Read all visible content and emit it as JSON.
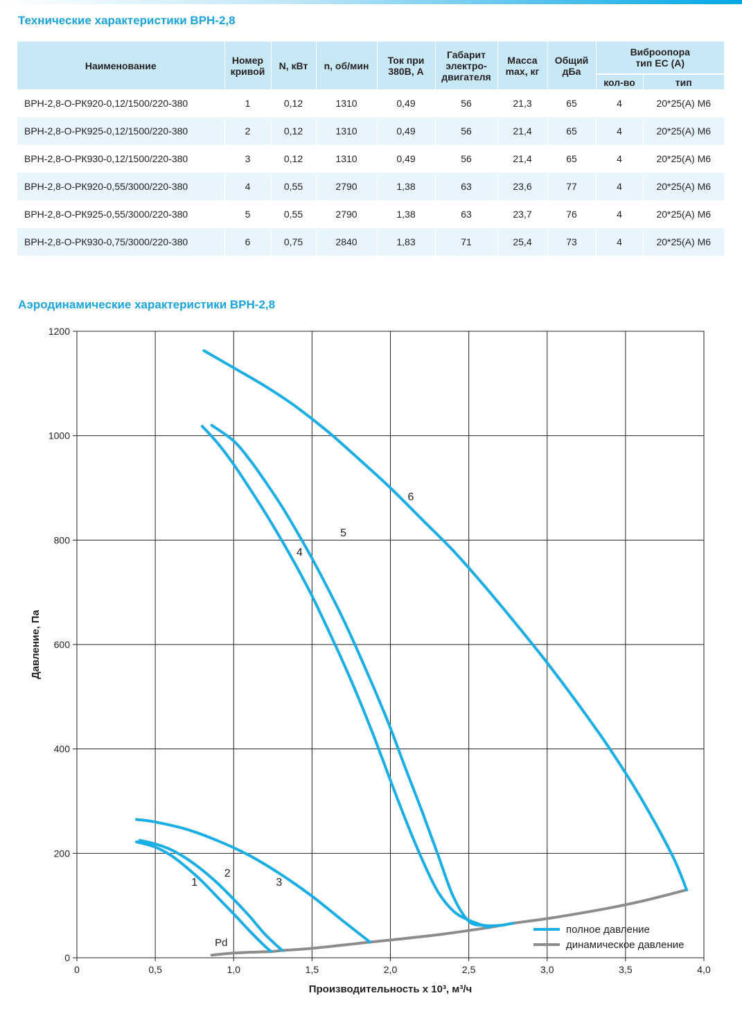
{
  "title_tech": "Технические характеристики ВРН-2,8",
  "title_aero": "Аэродинамические характеристики ВРН-2,8",
  "table": {
    "headers": {
      "name": "Наименование",
      "curve_no": [
        "Номер",
        "кривой"
      ],
      "power": "N, кВт",
      "rpm": "n, об/мин",
      "current": [
        "Ток при",
        "380В, А"
      ],
      "frame": [
        "Габарит",
        "электро-",
        "двигателя"
      ],
      "mass": [
        "Масса",
        "max, кг"
      ],
      "noise": [
        "Общий",
        "дБа"
      ],
      "vibro": [
        "Виброопора",
        "тип ЕС (А)"
      ],
      "vibro_qty": "кол-во",
      "vibro_type": "тип"
    },
    "rows": [
      {
        "name": "ВРН-2,8-О-РК920-0,12/1500/220-380",
        "curve": "1",
        "power": "0,12",
        "rpm": "1310",
        "current": "0,49",
        "frame": "56",
        "mass": "21,3",
        "noise": "65",
        "qty": "4",
        "type": "20*25(А) М6"
      },
      {
        "name": "ВРН-2,8-О-РК925-0,12/1500/220-380",
        "curve": "2",
        "power": "0,12",
        "rpm": "1310",
        "current": "0,49",
        "frame": "56",
        "mass": "21,4",
        "noise": "65",
        "qty": "4",
        "type": "20*25(А) М6"
      },
      {
        "name": "ВРН-2,8-О-РК930-0,12/1500/220-380",
        "curve": "3",
        "power": "0,12",
        "rpm": "1310",
        "current": "0,49",
        "frame": "56",
        "mass": "21,4",
        "noise": "65",
        "qty": "4",
        "type": "20*25(А) М6"
      },
      {
        "name": "ВРН-2,8-О-РК920-0,55/3000/220-380",
        "curve": "4",
        "power": "0,55",
        "rpm": "2790",
        "current": "1,38",
        "frame": "63",
        "mass": "23,6",
        "noise": "77",
        "qty": "4",
        "type": "20*25(А) М6"
      },
      {
        "name": "ВРН-2,8-О-РК925-0,55/3000/220-380",
        "curve": "5",
        "power": "0,55",
        "rpm": "2790",
        "current": "1,38",
        "frame": "63",
        "mass": "23,7",
        "noise": "76",
        "qty": "4",
        "type": "20*25(А) М6"
      },
      {
        "name": "ВРН-2,8-О-РК930-0,75/3000/220-380",
        "curve": "6",
        "power": "0,75",
        "rpm": "2840",
        "current": "1,83",
        "frame": "71",
        "mass": "25,4",
        "noise": "73",
        "qty": "4",
        "type": "20*25(А) М6"
      }
    ]
  },
  "chart_data": {
    "type": "line",
    "xlabel": "Производительность х 10³, м³/ч",
    "ylabel": "Давление, Па",
    "xlim": [
      0,
      4
    ],
    "ylim": [
      0,
      1200
    ],
    "xticks": [
      0,
      0.5,
      1,
      1.5,
      2,
      2.5,
      3,
      3.5,
      4
    ],
    "xtick_labels": [
      "0",
      "0,5",
      "1,0",
      "1,5",
      "2,0",
      "2,5",
      "3,0",
      "3,5",
      "4,0"
    ],
    "yticks": [
      0,
      200,
      400,
      600,
      800,
      1000,
      1200
    ],
    "ytick_labels": [
      "0",
      "200",
      "400",
      "600",
      "800",
      "1000",
      "1200"
    ],
    "grid": true,
    "legend_position": "bottom-right",
    "legend": [
      "полное давление",
      "динамическое давление"
    ],
    "colors": {
      "full": "#1aaee5",
      "dynamic": "#8c8c8c",
      "grid": "#231f20"
    },
    "series": [
      {
        "name": "1",
        "label_at": [
          0.75,
          138
        ],
        "points": [
          [
            0.38,
            222
          ],
          [
            0.5,
            212
          ],
          [
            0.6,
            196
          ],
          [
            0.7,
            173
          ],
          [
            0.8,
            146
          ],
          [
            0.9,
            115
          ],
          [
            1.0,
            84
          ],
          [
            1.1,
            52
          ],
          [
            1.2,
            22
          ],
          [
            1.24,
            12
          ]
        ]
      },
      {
        "name": "2",
        "label_at": [
          0.96,
          155
        ],
        "points": [
          [
            0.4,
            225
          ],
          [
            0.5,
            218
          ],
          [
            0.6,
            207
          ],
          [
            0.7,
            190
          ],
          [
            0.8,
            168
          ],
          [
            0.9,
            142
          ],
          [
            1.0,
            112
          ],
          [
            1.1,
            80
          ],
          [
            1.2,
            45
          ],
          [
            1.31,
            14
          ]
        ]
      },
      {
        "name": "3",
        "label_at": [
          1.29,
          138
        ],
        "points": [
          [
            0.38,
            265
          ],
          [
            0.5,
            260
          ],
          [
            0.7,
            246
          ],
          [
            0.9,
            224
          ],
          [
            1.1,
            196
          ],
          [
            1.3,
            160
          ],
          [
            1.5,
            118
          ],
          [
            1.7,
            70
          ],
          [
            1.87,
            30
          ]
        ]
      },
      {
        "name": "4",
        "label_at": [
          1.42,
          770
        ],
        "points": [
          [
            0.8,
            1018
          ],
          [
            0.9,
            985
          ],
          [
            1.0,
            945
          ],
          [
            1.1,
            900
          ],
          [
            1.2,
            853
          ],
          [
            1.3,
            803
          ],
          [
            1.4,
            750
          ],
          [
            1.5,
            693
          ],
          [
            1.6,
            630
          ],
          [
            1.7,
            565
          ],
          [
            1.8,
            495
          ],
          [
            1.9,
            420
          ],
          [
            2.0,
            342
          ],
          [
            2.1,
            262
          ],
          [
            2.2,
            180
          ],
          [
            2.3,
            100
          ],
          [
            2.4,
            35
          ],
          [
            2.43,
            20
          ],
          [
            2.53,
            80
          ],
          [
            2.63,
            58
          ]
        ]
      },
      {
        "name": "5",
        "label_at": [
          1.7,
          807
        ],
        "points": [
          [
            0.86,
            1020
          ],
          [
            1.0,
            990
          ],
          [
            1.1,
            955
          ],
          [
            1.2,
            913
          ],
          [
            1.3,
            868
          ],
          [
            1.4,
            818
          ],
          [
            1.5,
            765
          ],
          [
            1.6,
            708
          ],
          [
            1.7,
            648
          ],
          [
            1.8,
            582
          ],
          [
            1.9,
            513
          ],
          [
            2.0,
            440
          ],
          [
            2.1,
            360
          ],
          [
            2.2,
            282
          ],
          [
            2.3,
            200
          ],
          [
            2.4,
            118
          ],
          [
            2.5,
            70
          ],
          [
            2.6,
            62
          ],
          [
            2.7,
            62
          ],
          [
            2.78,
            66
          ]
        ]
      },
      {
        "name": "6",
        "label_at": [
          2.13,
          876
        ],
        "points": [
          [
            0.81,
            1163
          ],
          [
            1.0,
            1130
          ],
          [
            1.2,
            1095
          ],
          [
            1.4,
            1055
          ],
          [
            1.6,
            1008
          ],
          [
            1.8,
            955
          ],
          [
            2.0,
            900
          ],
          [
            2.2,
            840
          ],
          [
            2.4,
            780
          ],
          [
            2.6,
            712
          ],
          [
            2.8,
            640
          ],
          [
            3.0,
            565
          ],
          [
            3.2,
            485
          ],
          [
            3.4,
            400
          ],
          [
            3.6,
            305
          ],
          [
            3.8,
            195
          ],
          [
            3.89,
            130
          ]
        ]
      }
    ],
    "dynamic_pressure": {
      "name": "Pd",
      "label_at": [
        0.88,
        20
      ],
      "points": [
        [
          0.86,
          5
        ],
        [
          1.0,
          9
        ],
        [
          1.24,
          12
        ],
        [
          1.31,
          14
        ],
        [
          1.5,
          18
        ],
        [
          1.87,
          30
        ],
        [
          2.0,
          34
        ],
        [
          2.3,
          44
        ],
        [
          2.63,
          58
        ],
        [
          2.78,
          66
        ],
        [
          3.0,
          75
        ],
        [
          3.3,
          90
        ],
        [
          3.6,
          108
        ],
        [
          3.89,
          130
        ]
      ]
    }
  }
}
